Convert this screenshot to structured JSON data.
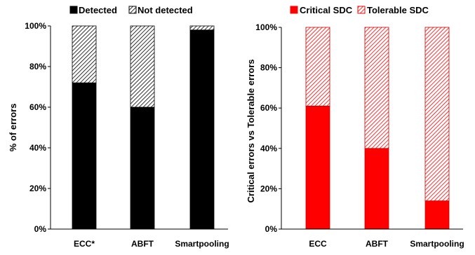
{
  "chart_data": [
    {
      "type": "bar",
      "stacked": true,
      "categories": [
        "ECC*",
        "ABFT",
        "Smartpooling"
      ],
      "series": [
        {
          "name": "Detected",
          "values": [
            72,
            60,
            98
          ],
          "color": "#000000"
        },
        {
          "name": "Not detected",
          "values": [
            28,
            40,
            2
          ],
          "color": "#000000",
          "pattern": "hatched"
        }
      ],
      "ylabel": "% of errors",
      "ylim": [
        0,
        100
      ],
      "yticks": [
        "0%",
        "20%",
        "40%",
        "60%",
        "80%",
        "100%"
      ],
      "legend": "top"
    },
    {
      "type": "bar",
      "stacked": true,
      "categories": [
        "ECC",
        "ABFT",
        "Smartpooling"
      ],
      "series": [
        {
          "name": "Critical SDC",
          "values": [
            61,
            40,
            14
          ],
          "color": "#ff0000"
        },
        {
          "name": "Tolerable SDC",
          "values": [
            39,
            60,
            86
          ],
          "color": "#ff0000",
          "pattern": "hatched"
        }
      ],
      "ylabel": "Critical errors vs Tolerable errors",
      "ylim": [
        0,
        100
      ],
      "yticks": [
        "0%",
        "20%",
        "40%",
        "60%",
        "80%",
        "100%"
      ],
      "legend": "top"
    }
  ]
}
